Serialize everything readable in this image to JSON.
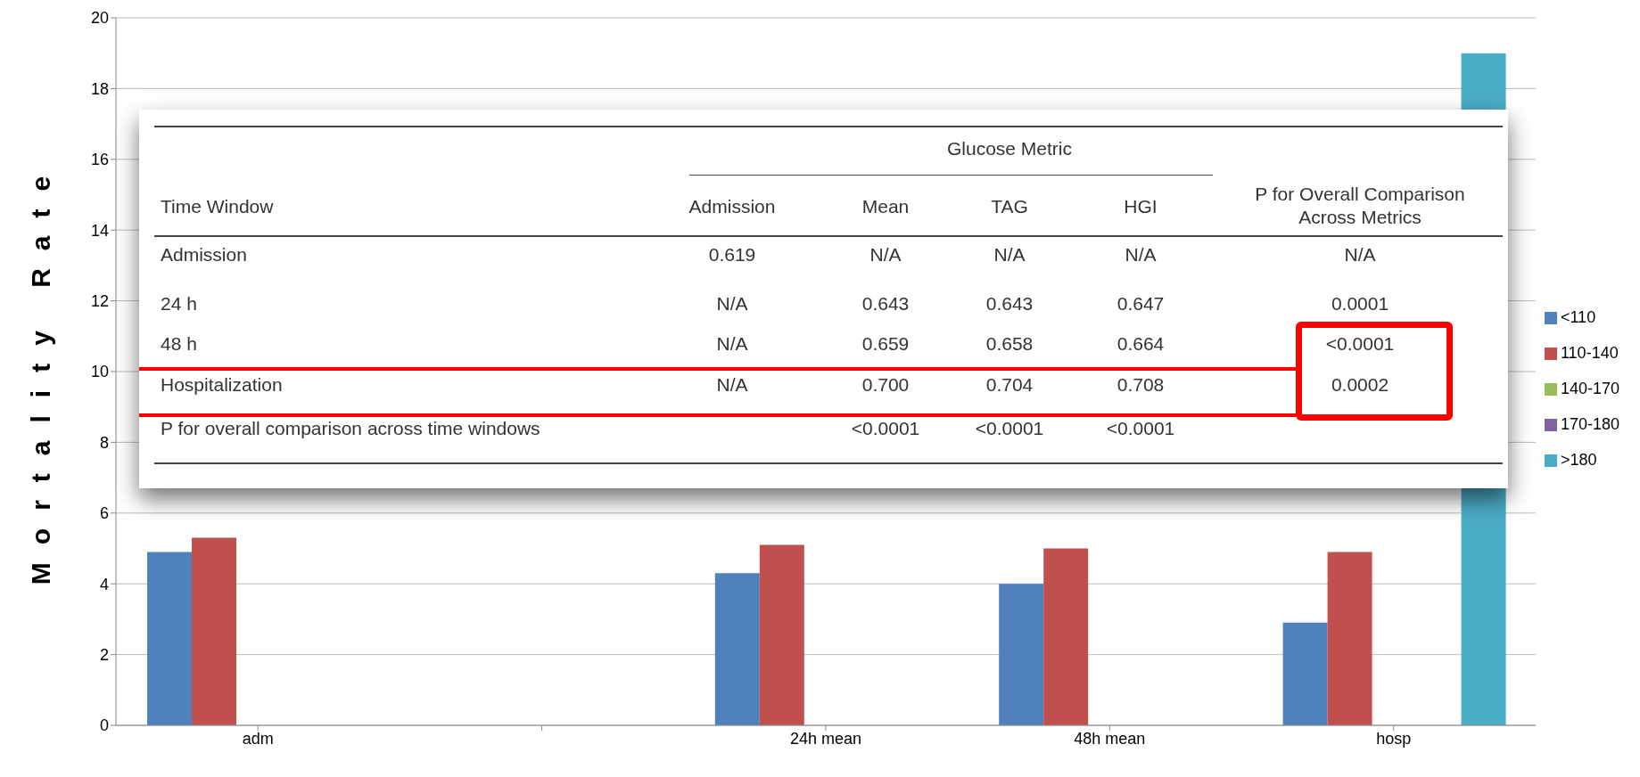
{
  "chart_data": {
    "type": "bar",
    "ylabel": "Mortality Rate",
    "categories": [
      "adm",
      null,
      "24h mean",
      "48h mean",
      "hosp"
    ],
    "series": [
      {
        "name": "<110",
        "color": "#4f81bd",
        "values": [
          4.9,
          null,
          4.3,
          4.0,
          2.9
        ]
      },
      {
        "name": "110-140",
        "color": "#c0504d",
        "values": [
          5.3,
          null,
          5.1,
          5.0,
          4.9
        ]
      },
      {
        "name": "140-170",
        "color": "#9bbb59",
        "values": [
          null,
          null,
          null,
          null,
          null
        ]
      },
      {
        "name": "170-180",
        "color": "#8064a2",
        "values": [
          null,
          null,
          null,
          null,
          null
        ]
      },
      {
        "name": ">180",
        "color": "#4bacc6",
        "values": [
          null,
          null,
          null,
          null,
          19
        ]
      }
    ],
    "ylim": [
      0,
      20
    ],
    "yticks": [
      0,
      2,
      4,
      6,
      8,
      10,
      12,
      14,
      16,
      18,
      20
    ],
    "grid": "y",
    "legend": "right",
    "annotations": [
      "Glucose Metric",
      "Time Window",
      "Admission",
      "Mean",
      "TAG",
      "HGI",
      "P for Overall Comparison Across Metrics",
      "Admission",
      "0.619",
      "N/A",
      "N/A",
      "N/A",
      "N/A",
      "24 h",
      "N/A",
      "0.643",
      "0.643",
      "0.647",
      "0.0001",
      "48 h",
      "N/A",
      "0.659",
      "0.658",
      "0.664",
      "<0.0001",
      "Hospitalization",
      "N/A",
      "0.700",
      "0.704",
      "0.708",
      "0.0002",
      "P for overall comparison across time windows",
      "<0.0001",
      "<0.0001",
      "<0.0001"
    ]
  }
}
